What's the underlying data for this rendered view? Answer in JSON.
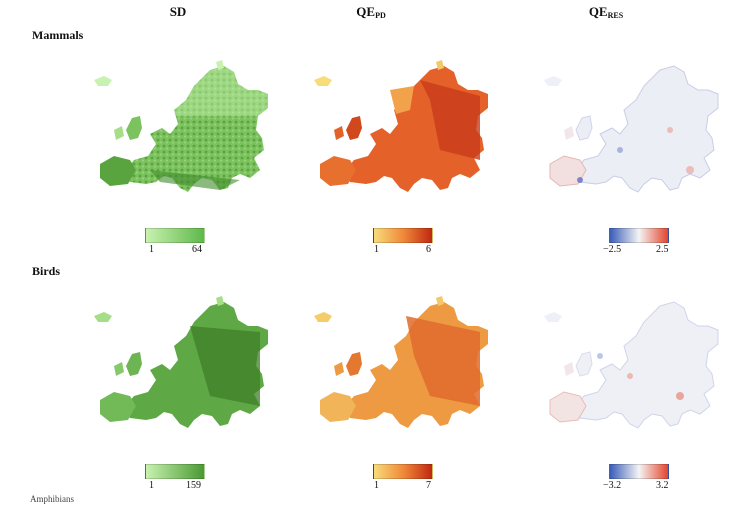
{
  "columns": [
    {
      "id": "sd",
      "main": "SD",
      "sub": ""
    },
    {
      "id": "qepd",
      "main": "QE",
      "sub": "PD"
    },
    {
      "id": "qeres",
      "main": "QE",
      "sub": "RES"
    }
  ],
  "rows": [
    {
      "label": "Mammals",
      "legends": [
        {
          "min": "1",
          "max": "64",
          "colors": [
            "#c8f2b0",
            "#5fb84a"
          ]
        },
        {
          "min": "1",
          "max": "6",
          "colors": [
            "#f7dc7a",
            "#f08a3a",
            "#c02810"
          ]
        },
        {
          "min": "−2.5",
          "max": "2.5",
          "colors": [
            "#3a5db8",
            "#f4f4f4",
            "#e3452c"
          ]
        }
      ]
    },
    {
      "label": "Birds",
      "legends": [
        {
          "min": "1",
          "max": "159",
          "colors": [
            "#c8f2b0",
            "#4a9a32"
          ]
        },
        {
          "min": "1",
          "max": "7",
          "colors": [
            "#f7dc7a",
            "#f08a3a",
            "#c02810"
          ]
        },
        {
          "min": "−3.2",
          "max": "3.2",
          "colors": [
            "#3a5db8",
            "#f4f4f4",
            "#e3452c"
          ]
        }
      ]
    }
  ],
  "footer_text": "Amphibians"
}
